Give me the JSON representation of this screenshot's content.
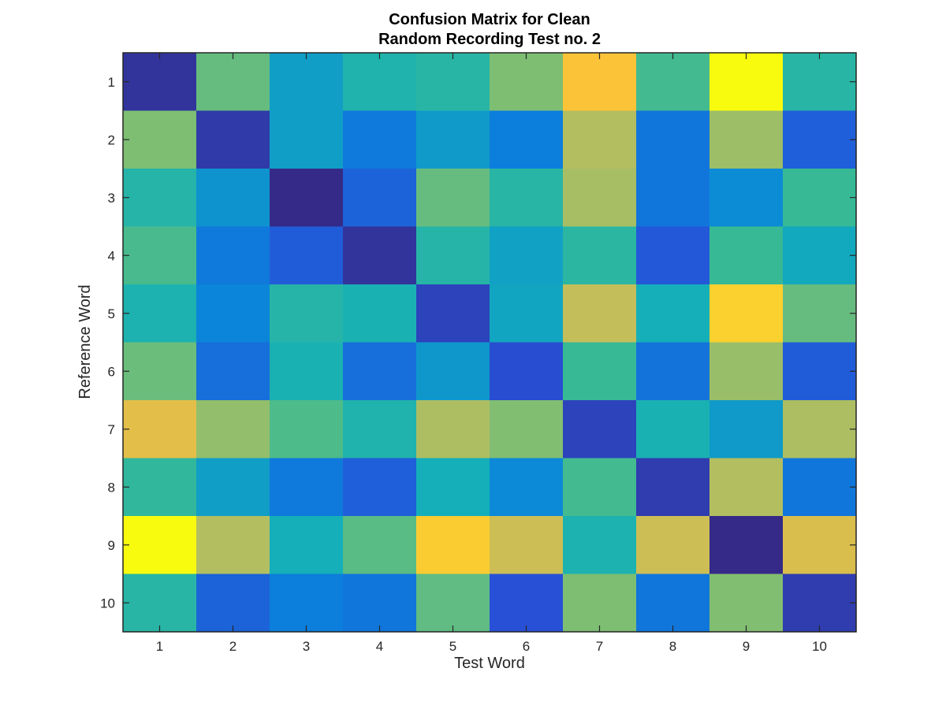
{
  "chart_data": {
    "type": "heatmap",
    "title_lines": [
      "Confusion Matrix for Clean",
      "Random Recording Test no. 2"
    ],
    "xlabel": "Test Word",
    "ylabel": "Reference Word",
    "x_categories": [
      "1",
      "2",
      "3",
      "4",
      "5",
      "6",
      "7",
      "8",
      "9",
      "10"
    ],
    "y_categories": [
      "1",
      "2",
      "3",
      "4",
      "5",
      "6",
      "7",
      "8",
      "9",
      "10"
    ],
    "colormap": "parula",
    "clim": [
      0,
      1
    ],
    "values": [
      [
        0.03,
        0.58,
        0.33,
        0.42,
        0.45,
        0.62,
        0.88,
        0.52,
        1.0,
        0.45
      ],
      [
        0.62,
        0.05,
        0.33,
        0.23,
        0.32,
        0.24,
        0.72,
        0.22,
        0.68,
        0.16
      ],
      [
        0.44,
        0.3,
        0.0,
        0.17,
        0.58,
        0.45,
        0.7,
        0.22,
        0.28,
        0.5
      ],
      [
        0.53,
        0.23,
        0.15,
        0.03,
        0.44,
        0.34,
        0.46,
        0.14,
        0.5,
        0.36
      ],
      [
        0.41,
        0.26,
        0.44,
        0.4,
        0.08,
        0.35,
        0.75,
        0.38,
        0.91,
        0.58
      ],
      [
        0.59,
        0.2,
        0.4,
        0.2,
        0.31,
        0.11,
        0.5,
        0.21,
        0.67,
        0.15
      ],
      [
        0.82,
        0.66,
        0.54,
        0.42,
        0.71,
        0.63,
        0.08,
        0.4,
        0.32,
        0.71
      ],
      [
        0.48,
        0.33,
        0.23,
        0.16,
        0.38,
        0.27,
        0.52,
        0.06,
        0.72,
        0.22
      ],
      [
        1.0,
        0.72,
        0.38,
        0.56,
        0.9,
        0.77,
        0.41,
        0.77,
        0.0,
        0.8
      ],
      [
        0.45,
        0.17,
        0.24,
        0.22,
        0.57,
        0.12,
        0.62,
        0.22,
        0.63,
        0.06
      ]
    ],
    "grid": false,
    "colorbar": false
  }
}
